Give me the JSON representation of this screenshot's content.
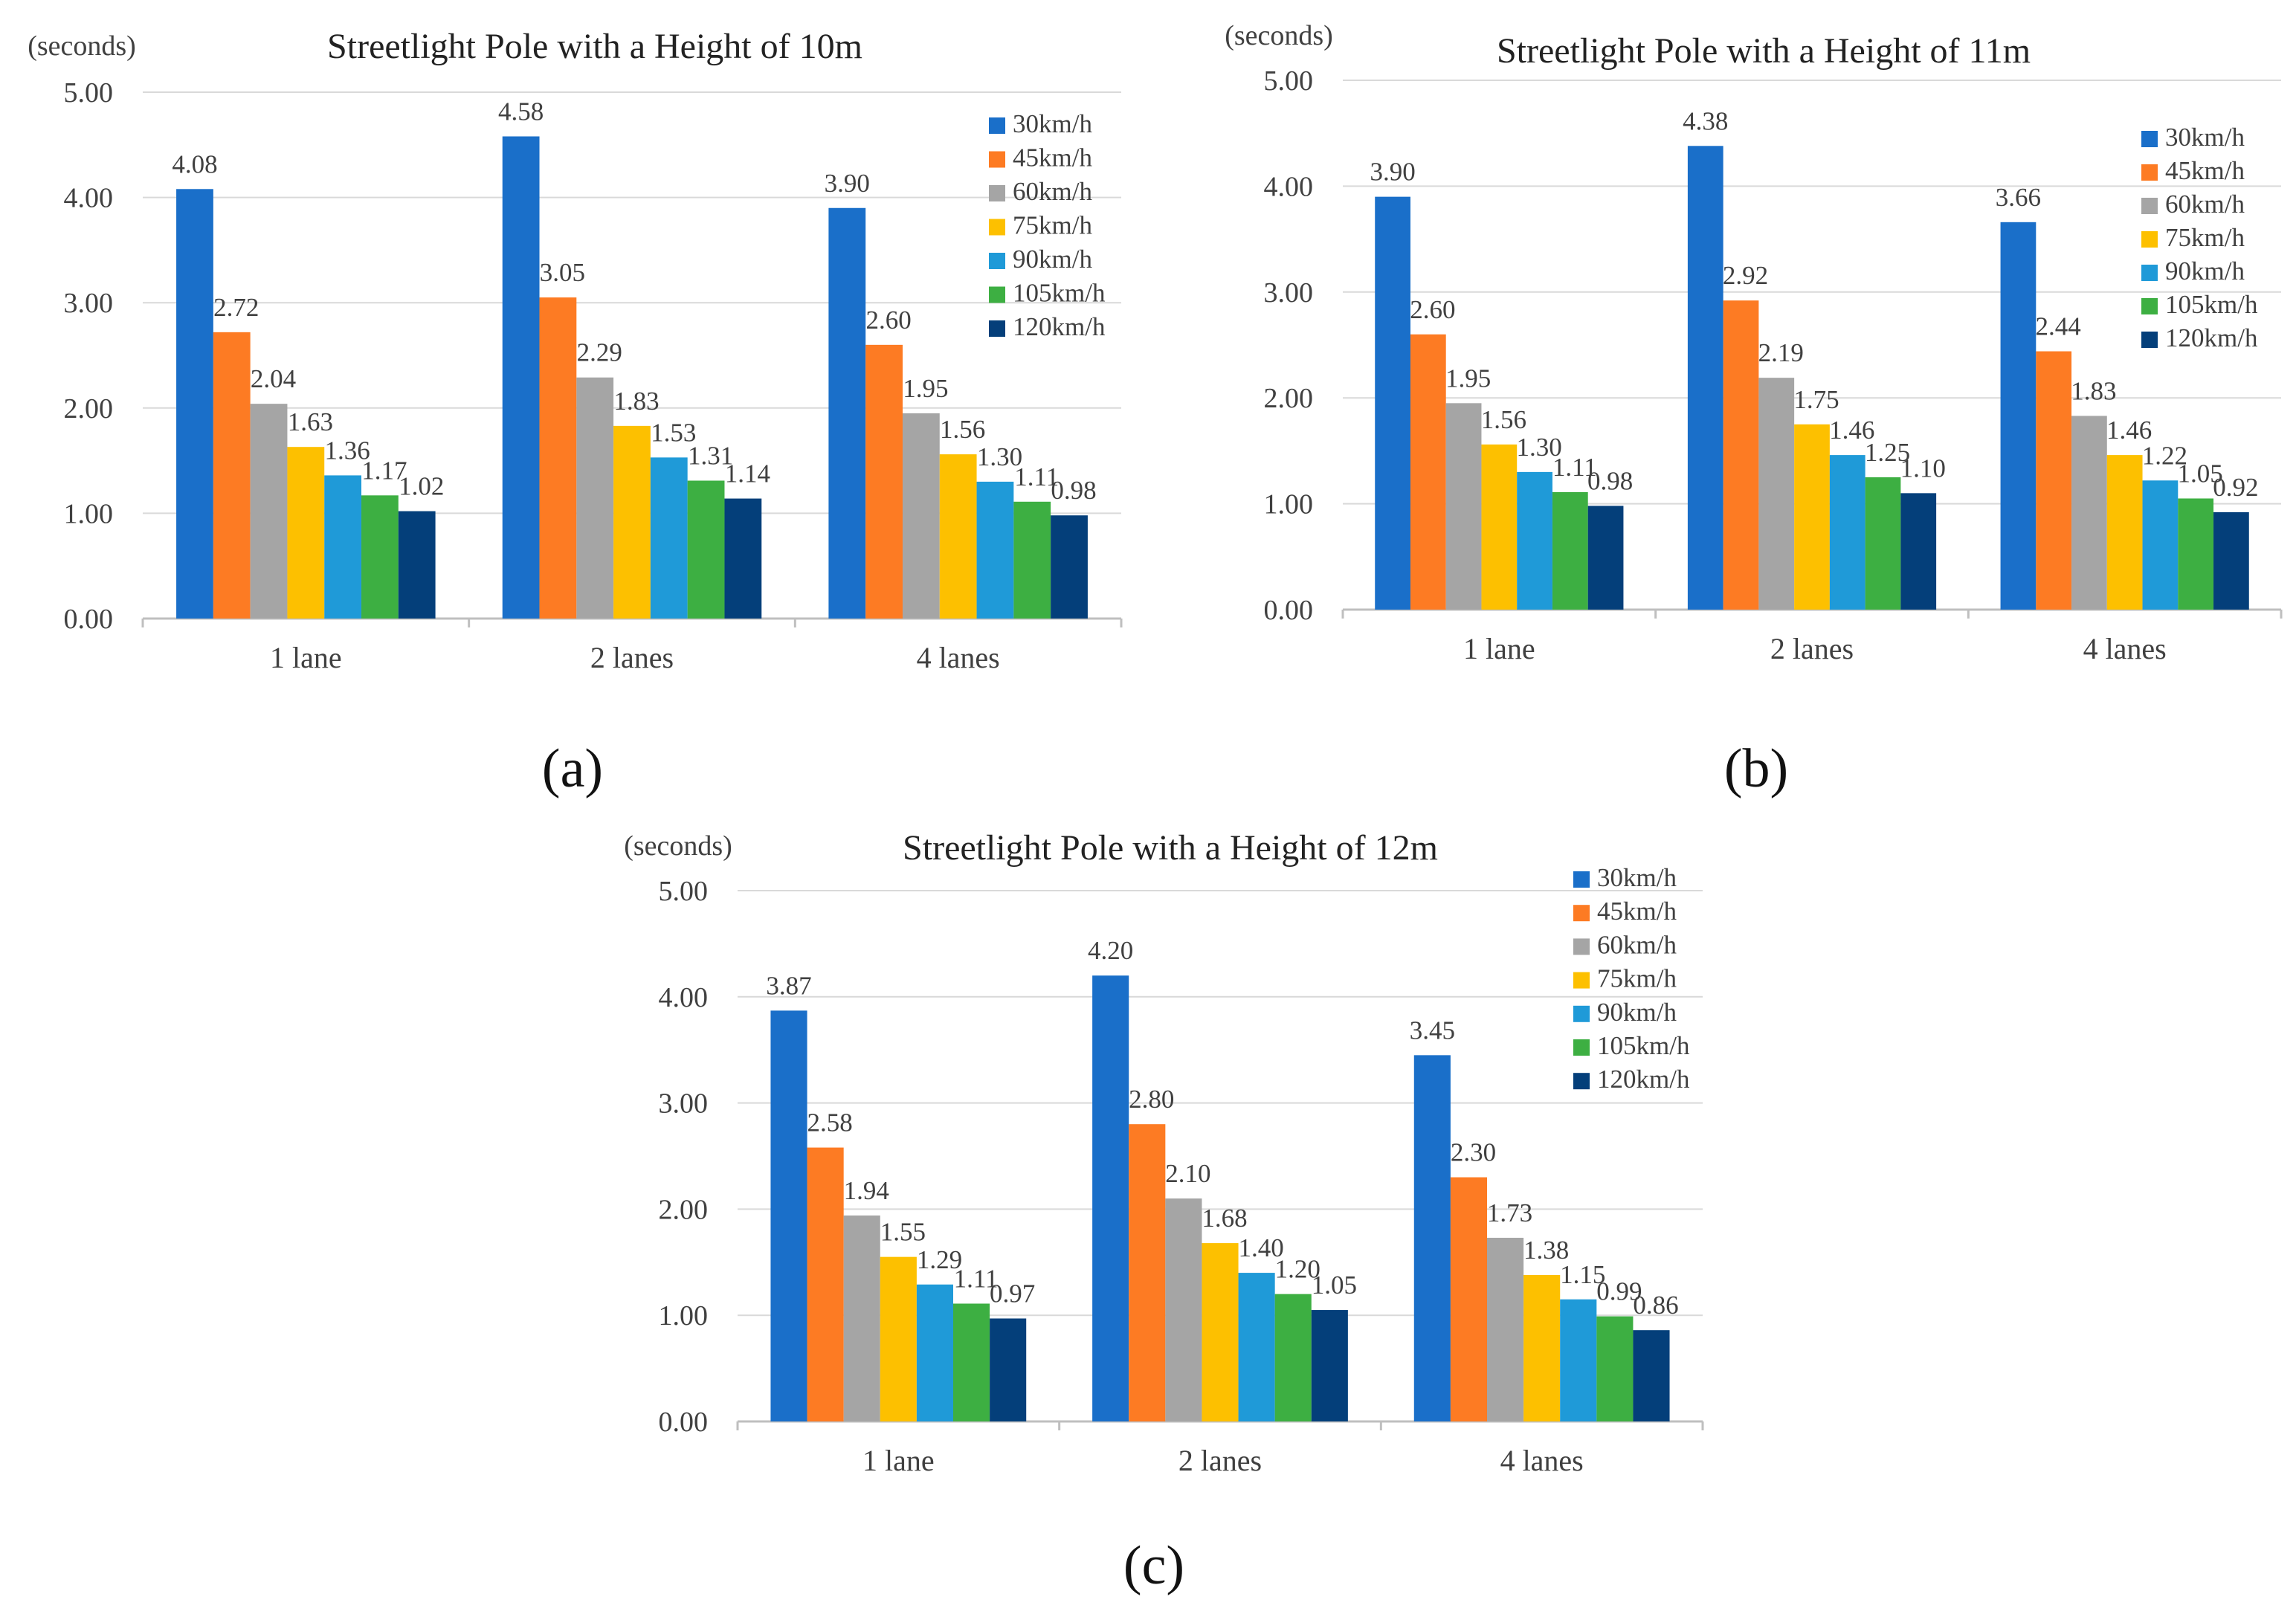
{
  "chart_data": [
    {
      "type": "bar",
      "panel": "(a)",
      "title": "Streetlight Pole with a Height of 10m",
      "ylabel": "(seconds)",
      "xlabel": "",
      "ylim": [
        0,
        5
      ],
      "yticks": [
        "0.00",
        "1.00",
        "2.00",
        "3.00",
        "4.00",
        "5.00"
      ],
      "grid": true,
      "legend_position": "right",
      "categories": [
        "1 lane",
        "2 lanes",
        "4 lanes"
      ],
      "series": [
        {
          "name": "30km/h",
          "values": [
            4.08,
            4.58,
            3.9
          ]
        },
        {
          "name": "45km/h",
          "values": [
            2.72,
            3.05,
            2.6
          ]
        },
        {
          "name": "60km/h",
          "values": [
            2.04,
            2.29,
            1.95
          ]
        },
        {
          "name": "75km/h",
          "values": [
            1.63,
            1.83,
            1.56
          ]
        },
        {
          "name": "90km/h",
          "values": [
            1.36,
            1.53,
            1.3
          ]
        },
        {
          "name": "105km/h",
          "values": [
            1.17,
            1.31,
            1.11
          ]
        },
        {
          "name": "120km/h",
          "values": [
            1.02,
            1.14,
            0.98
          ]
        }
      ],
      "labels": [
        [
          "4.08",
          "4.58",
          "3.90"
        ],
        [
          "2.72",
          "3.05",
          "2.60"
        ],
        [
          "2.04",
          "2.29",
          "1.95"
        ],
        [
          "1.63",
          "1.83",
          "1.56"
        ],
        [
          "1.36",
          "1.53",
          "1.30"
        ],
        [
          "1.17",
          "1.31",
          "1.11"
        ],
        [
          "1.02",
          "1.14",
          "0.98"
        ]
      ]
    },
    {
      "type": "bar",
      "panel": "(b)",
      "title": "Streetlight Pole with a Height of 11m",
      "ylabel": "(seconds)",
      "xlabel": "",
      "ylim": [
        0,
        5
      ],
      "yticks": [
        "0.00",
        "1.00",
        "2.00",
        "3.00",
        "4.00",
        "5.00"
      ],
      "grid": true,
      "legend_position": "right",
      "categories": [
        "1 lane",
        "2 lanes",
        "4 lanes"
      ],
      "series": [
        {
          "name": "30km/h",
          "values": [
            3.9,
            4.38,
            3.66
          ]
        },
        {
          "name": "45km/h",
          "values": [
            2.6,
            2.92,
            2.44
          ]
        },
        {
          "name": "60km/h",
          "values": [
            1.95,
            2.19,
            1.83
          ]
        },
        {
          "name": "75km/h",
          "values": [
            1.56,
            1.75,
            1.46
          ]
        },
        {
          "name": "90km/h",
          "values": [
            1.3,
            1.46,
            1.22
          ]
        },
        {
          "name": "105km/h",
          "values": [
            1.11,
            1.25,
            1.05
          ]
        },
        {
          "name": "120km/h",
          "values": [
            0.98,
            1.1,
            0.92
          ]
        }
      ],
      "labels": [
        [
          "3.90",
          "4.38",
          "3.66"
        ],
        [
          "2.60",
          "2.92",
          "2.44"
        ],
        [
          "1.95",
          "2.19",
          "1.83"
        ],
        [
          "1.56",
          "1.75",
          "1.46"
        ],
        [
          "1.30",
          "1.46",
          "1.22"
        ],
        [
          "1.11",
          "1.25",
          "1.05"
        ],
        [
          "0.98",
          "1.10",
          "0.92"
        ]
      ]
    },
    {
      "type": "bar",
      "panel": "(c)",
      "title": "Streetlight Pole with a Height of 12m",
      "ylabel": "(seconds)",
      "xlabel": "",
      "ylim": [
        0,
        5
      ],
      "yticks": [
        "0.00",
        "1.00",
        "2.00",
        "3.00",
        "4.00",
        "5.00"
      ],
      "grid": true,
      "legend_position": "right",
      "categories": [
        "1 lane",
        "2 lanes",
        "4 lanes"
      ],
      "series": [
        {
          "name": "30km/h",
          "values": [
            3.87,
            4.2,
            3.45
          ]
        },
        {
          "name": "45km/h",
          "values": [
            2.58,
            2.8,
            2.3
          ]
        },
        {
          "name": "60km/h",
          "values": [
            1.94,
            2.1,
            1.73
          ]
        },
        {
          "name": "75km/h",
          "values": [
            1.55,
            1.68,
            1.38
          ]
        },
        {
          "name": "90km/h",
          "values": [
            1.29,
            1.4,
            1.15
          ]
        },
        {
          "name": "105km/h",
          "values": [
            1.11,
            1.2,
            0.99
          ]
        },
        {
          "name": "120km/h",
          "values": [
            0.97,
            1.05,
            0.86
          ]
        }
      ],
      "labels": [
        [
          "3.87",
          "4.20",
          "3.45"
        ],
        [
          "2.58",
          "2.80",
          "2.30"
        ],
        [
          "1.94",
          "2.10",
          "1.73"
        ],
        [
          "1.55",
          "1.68",
          "1.38"
        ],
        [
          "1.29",
          "1.40",
          "1.15"
        ],
        [
          "1.11",
          "1.20",
          "0.99"
        ],
        [
          "0.97",
          "1.05",
          "0.86"
        ]
      ]
    }
  ],
  "colors": {
    "30km/h": "#1a6fc9",
    "45km/h": "#fd7b23",
    "60km/h": "#a5a5a5",
    "75km/h": "#fdc000",
    "90km/h": "#1f9ad8",
    "105km/h": "#3daf42",
    "120km/h": "#043f7a",
    "grid": "#d9d9d9",
    "axis": "#bfbfbf"
  }
}
